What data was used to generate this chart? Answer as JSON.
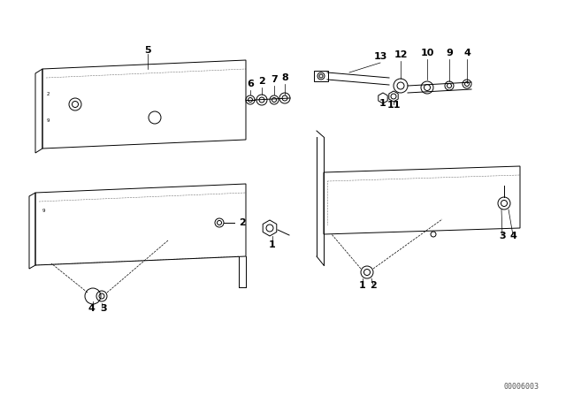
{
  "bg_color": "#ffffff",
  "line_color": "#000000",
  "watermark": "00006003",
  "fig_width": 6.4,
  "fig_height": 4.48,
  "dpi": 100
}
